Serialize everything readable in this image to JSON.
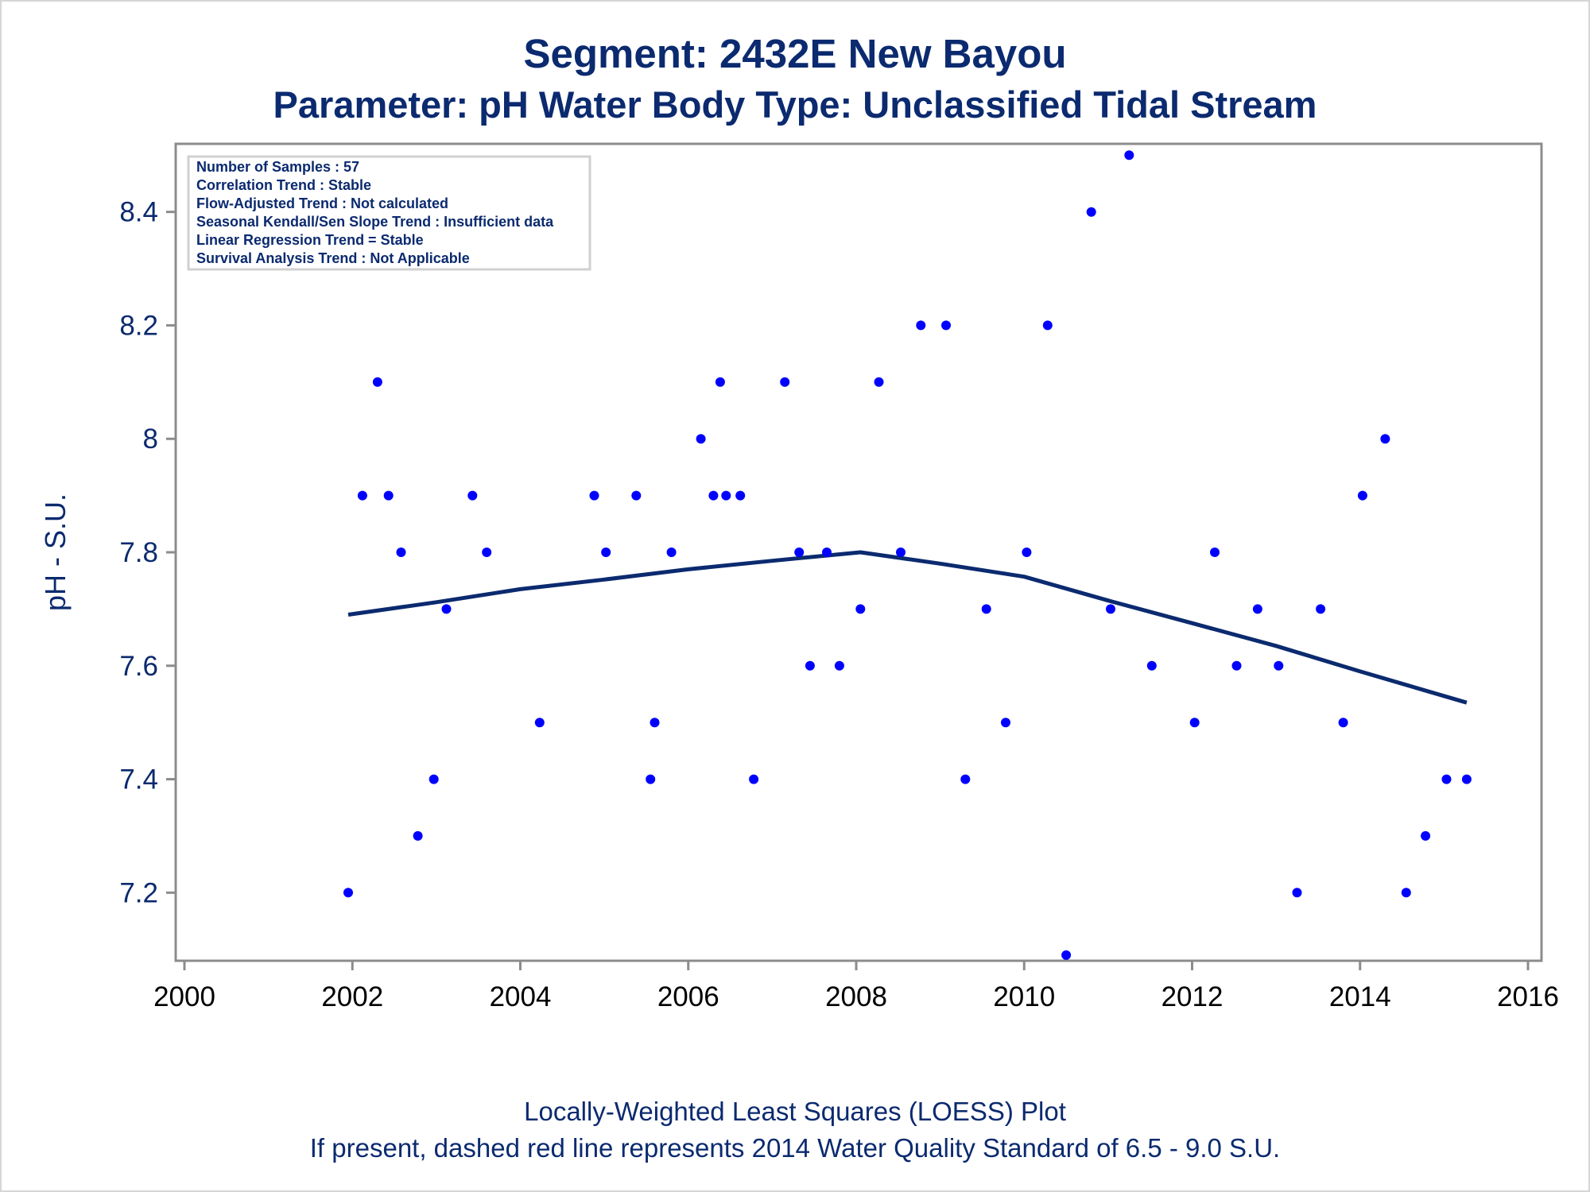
{
  "titles": {
    "line1": "Segment: 2432E  New Bayou",
    "line2": "Parameter: pH   Water Body Type: Unclassified Tidal Stream"
  },
  "footnotes": {
    "line1": "Locally-Weighted Least Squares (LOESS) Plot",
    "line2": "If present, dashed red line represents 2014 Water Quality Standard of 6.5 - 9.0 S.U."
  },
  "inset": [
    "Number of Samples : 57",
    "Correlation Trend : Stable",
    "Flow-Adjusted Trend : Not calculated",
    "Seasonal Kendall/Sen Slope Trend : Insufficient data",
    "Linear Regression Trend = Stable",
    "Survival Analysis Trend : Not Applicable"
  ],
  "colors": {
    "points": "#0000ff",
    "loess_line": "#0b2a6f",
    "text": "#0b2a6f",
    "axis": "#8c8c8c"
  },
  "chart_data": {
    "type": "scatter",
    "title": "Segment: 2432E  New Bayou",
    "subtitle": "Parameter: pH   Water Body Type: Unclassified Tidal Stream",
    "xlabel": "",
    "ylabel": "pH - S.U.",
    "xlim": [
      2000,
      2016
    ],
    "ylim": [
      7.08,
      8.52
    ],
    "xticks": [
      "2000",
      "2002",
      "2004",
      "2006",
      "2008",
      "2010",
      "2012",
      "2014",
      "2016"
    ],
    "yticks": [
      "7.2",
      "7.4",
      "7.6",
      "7.8",
      "8",
      "8.2",
      "8.4"
    ],
    "grid": false,
    "series": [
      {
        "type": "scatter",
        "x": [
          2001.95,
          2002.12,
          2002.3,
          2002.43,
          2002.58,
          2002.78,
          2002.97,
          2003.12,
          2003.43,
          2003.6,
          2004.23,
          2004.88,
          2005.02,
          2005.38,
          2005.55,
          2005.6,
          2005.8,
          2006.15,
          2006.3,
          2006.38,
          2006.45,
          2006.62,
          2006.78,
          2007.15,
          2007.32,
          2007.45,
          2007.65,
          2007.8,
          2008.05,
          2008.27,
          2008.53,
          2008.77,
          2009.07,
          2009.3,
          2009.55,
          2009.78,
          2010.03,
          2010.28,
          2010.5,
          2010.8,
          2011.03,
          2011.25,
          2011.52,
          2012.03,
          2012.27,
          2012.53,
          2012.78,
          2013.03,
          2013.25,
          2013.53,
          2013.8,
          2014.03,
          2014.3,
          2014.55,
          2014.78,
          2015.03,
          2015.27
        ],
        "y": [
          7.2,
          7.9,
          8.1,
          7.9,
          7.8,
          7.3,
          7.4,
          7.7,
          7.9,
          7.8,
          7.5,
          7.9,
          7.8,
          7.9,
          7.4,
          7.5,
          7.8,
          8.0,
          7.9,
          8.1,
          7.9,
          7.9,
          7.4,
          8.1,
          7.8,
          7.6,
          7.8,
          7.6,
          7.7,
          8.1,
          7.8,
          8.2,
          8.2,
          7.4,
          7.7,
          7.5,
          7.8,
          8.2,
          7.09,
          8.4,
          7.7,
          8.5,
          7.6,
          7.5,
          7.8,
          7.6,
          7.7,
          7.6,
          7.2,
          7.7,
          7.5,
          7.9,
          8.0,
          7.2,
          7.3,
          7.4,
          7.4
        ]
      },
      {
        "type": "line",
        "x": [
          2001.95,
          2003.0,
          2004.0,
          2005.0,
          2006.0,
          2007.0,
          2008.05,
          2009.0,
          2010.0,
          2011.0,
          2012.0,
          2013.0,
          2014.0,
          2015.27
        ],
        "y": [
          7.69,
          7.712,
          7.735,
          7.752,
          7.77,
          7.785,
          7.8,
          7.78,
          7.757,
          7.715,
          7.675,
          7.635,
          7.59,
          7.535
        ]
      }
    ]
  }
}
